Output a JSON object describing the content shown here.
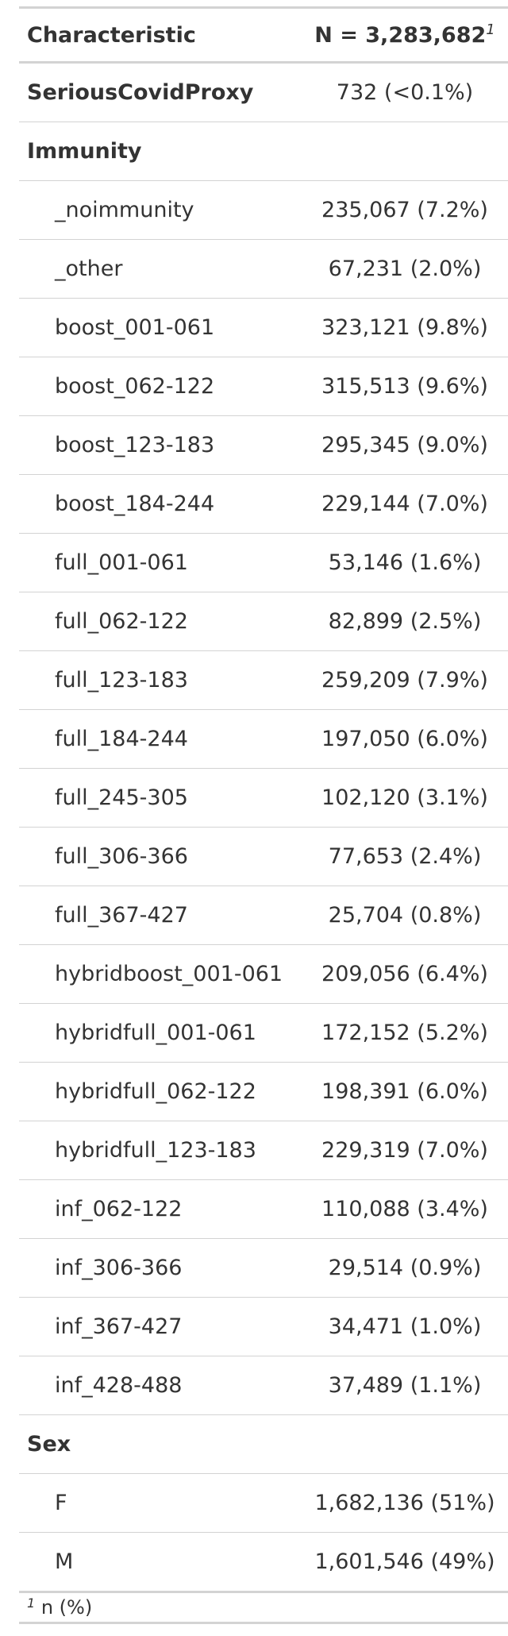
{
  "header": {
    "characteristic": "Characteristic",
    "n_total": "N = 3,283,682",
    "n_footnote_mark": "1"
  },
  "rows": [
    {
      "label": "SeriousCovidProxy",
      "value": "732 (<0.1%)",
      "kind": "variable"
    },
    {
      "label": "Immunity",
      "value": "",
      "kind": "variable"
    },
    {
      "label": "_noimmunity",
      "value": "235,067 (7.2%)",
      "kind": "level"
    },
    {
      "label": "_other",
      "value": "67,231 (2.0%)",
      "kind": "level"
    },
    {
      "label": "boost_001-061",
      "value": "323,121 (9.8%)",
      "kind": "level"
    },
    {
      "label": "boost_062-122",
      "value": "315,513 (9.6%)",
      "kind": "level"
    },
    {
      "label": "boost_123-183",
      "value": "295,345 (9.0%)",
      "kind": "level"
    },
    {
      "label": "boost_184-244",
      "value": "229,144 (7.0%)",
      "kind": "level"
    },
    {
      "label": "full_001-061",
      "value": "53,146 (1.6%)",
      "kind": "level"
    },
    {
      "label": "full_062-122",
      "value": "82,899 (2.5%)",
      "kind": "level"
    },
    {
      "label": "full_123-183",
      "value": "259,209 (7.9%)",
      "kind": "level"
    },
    {
      "label": "full_184-244",
      "value": "197,050 (6.0%)",
      "kind": "level"
    },
    {
      "label": "full_245-305",
      "value": "102,120 (3.1%)",
      "kind": "level"
    },
    {
      "label": "full_306-366",
      "value": "77,653 (2.4%)",
      "kind": "level"
    },
    {
      "label": "full_367-427",
      "value": "25,704 (0.8%)",
      "kind": "level"
    },
    {
      "label": "hybridboost_001-061",
      "value": "209,056 (6.4%)",
      "kind": "level"
    },
    {
      "label": "hybridfull_001-061",
      "value": "172,152 (5.2%)",
      "kind": "level"
    },
    {
      "label": "hybridfull_062-122",
      "value": "198,391 (6.0%)",
      "kind": "level"
    },
    {
      "label": "hybridfull_123-183",
      "value": "229,319 (7.0%)",
      "kind": "level"
    },
    {
      "label": "inf_062-122",
      "value": "110,088 (3.4%)",
      "kind": "level"
    },
    {
      "label": "inf_306-366",
      "value": "29,514 (0.9%)",
      "kind": "level"
    },
    {
      "label": "inf_367-427",
      "value": "34,471 (1.0%)",
      "kind": "level"
    },
    {
      "label": "inf_428-488",
      "value": "37,489 (1.1%)",
      "kind": "level"
    },
    {
      "label": "Sex",
      "value": "",
      "kind": "variable"
    },
    {
      "label": "F",
      "value": "1,682,136 (51%)",
      "kind": "level"
    },
    {
      "label": "M",
      "value": "1,601,546 (49%)",
      "kind": "level"
    }
  ],
  "footnote": {
    "mark": "1",
    "text": "n (%)"
  }
}
